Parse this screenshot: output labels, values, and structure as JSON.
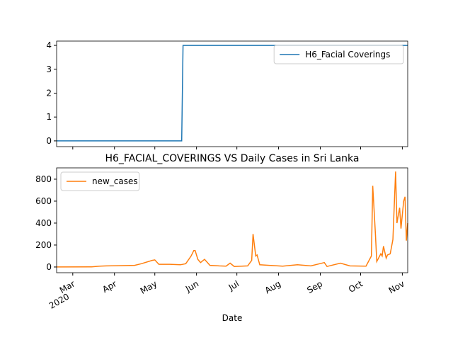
{
  "chart_data": [
    {
      "type": "line",
      "x": [
        -12,
        81,
        82,
        249
      ],
      "series": [
        {
          "name": "H6_Facial Coverings",
          "color": "#1f77b4",
          "values": [
            0,
            0,
            4,
            4
          ]
        }
      ],
      "xlim": [
        -12,
        249
      ],
      "ylim": [
        -0.24,
        4.18
      ],
      "yticks": [
        0,
        1,
        2,
        3,
        4
      ],
      "legend": "upper right"
    },
    {
      "type": "line",
      "title": "H6_FACIAL_COVERINGS VS Daily Cases in Sri Lanka",
      "x_label": "Date",
      "x": [
        -12,
        14,
        20,
        25,
        33,
        46,
        51,
        59,
        61,
        64,
        72,
        80,
        84,
        88,
        90,
        91,
        93,
        95,
        98,
        102,
        109,
        114,
        117,
        120,
        130,
        133,
        134,
        136,
        137,
        139,
        146,
        156,
        167,
        177,
        187,
        189,
        199,
        206,
        218,
        222,
        223,
        225,
        226,
        229,
        230,
        231,
        233,
        234,
        236,
        238,
        240,
        241,
        243,
        244,
        246,
        247,
        248,
        249
      ],
      "series": [
        {
          "name": "new_cases",
          "color": "#ff7f0e",
          "values": [
            0,
            1,
            8,
            10,
            12,
            15,
            30,
            60,
            65,
            25,
            25,
            20,
            30,
            100,
            150,
            150,
            70,
            40,
            70,
            15,
            10,
            8,
            35,
            5,
            10,
            60,
            300,
            100,
            110,
            20,
            15,
            8,
            20,
            10,
            40,
            5,
            35,
            10,
            8,
            100,
            740,
            300,
            50,
            120,
            100,
            190,
            80,
            110,
            120,
            250,
            870,
            400,
            540,
            350,
            600,
            640,
            240,
            400
          ]
        }
      ],
      "xlim": [
        -12,
        249
      ],
      "ylim": [
        -52,
        903
      ],
      "yticks": [
        0,
        200,
        400,
        600,
        800
      ],
      "xticks": [
        {
          "value": 0,
          "label": "Mar"
        },
        {
          "value": 31,
          "label": "Apr"
        },
        {
          "value": 61,
          "label": "May"
        },
        {
          "value": 92,
          "label": "Jun"
        },
        {
          "value": 122,
          "label": "Jul"
        },
        {
          "value": 153,
          "label": "Aug"
        },
        {
          "value": 184,
          "label": "Sep"
        },
        {
          "value": 214,
          "label": "Oct"
        },
        {
          "value": 245,
          "label": "Nov"
        }
      ],
      "xtick_year": "2020",
      "legend": "upper left"
    }
  ]
}
